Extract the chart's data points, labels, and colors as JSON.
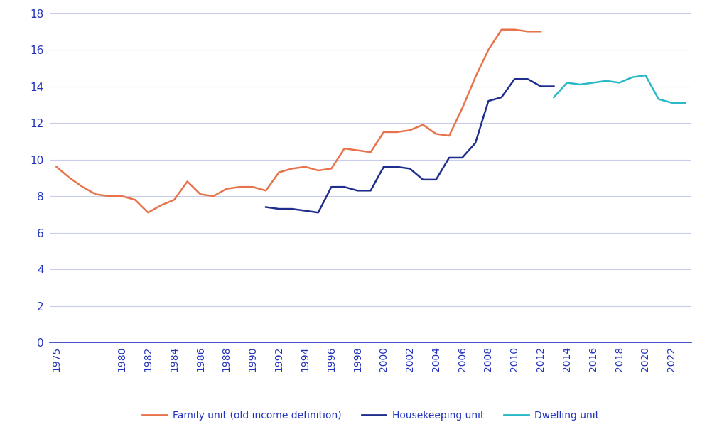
{
  "family_unit": {
    "years": [
      1975,
      1976,
      1977,
      1978,
      1979,
      1980,
      1981,
      1982,
      1983,
      1984,
      1985,
      1986,
      1987,
      1988,
      1989,
      1990,
      1991,
      1992,
      1993,
      1994,
      1995,
      1996,
      1997,
      1998,
      1999,
      2000,
      2001,
      2002,
      2003,
      2004,
      2005,
      2006,
      2007,
      2008,
      2009,
      2010,
      2011,
      2012
    ],
    "values": [
      9.6,
      9.0,
      8.5,
      8.1,
      8.0,
      8.0,
      7.8,
      7.1,
      7.5,
      7.8,
      8.8,
      8.1,
      8.0,
      8.4,
      8.5,
      8.5,
      8.3,
      9.3,
      9.5,
      9.6,
      9.4,
      9.5,
      10.6,
      10.5,
      10.4,
      11.5,
      11.5,
      11.6,
      11.9,
      11.4,
      11.3,
      12.8,
      14.5,
      16.0,
      17.1,
      17.1,
      17.0,
      17.0
    ],
    "color": "#E8734A"
  },
  "housekeeping_unit": {
    "years": [
      1991,
      1992,
      1993,
      1994,
      1995,
      1996,
      1997,
      1998,
      1999,
      2000,
      2001,
      2002,
      2003,
      2004,
      2005,
      2006,
      2007,
      2008,
      2009,
      2010,
      2011,
      2012,
      2013
    ],
    "values": [
      7.4,
      7.3,
      7.3,
      7.2,
      7.1,
      8.5,
      8.5,
      8.3,
      8.3,
      9.6,
      9.6,
      9.5,
      8.9,
      8.9,
      10.1,
      10.1,
      10.9,
      13.2,
      13.4,
      14.4,
      14.4,
      14.0,
      14.0
    ],
    "color": "#1F2E8C"
  },
  "dwelling_unit": {
    "years": [
      2013,
      2014,
      2015,
      2016,
      2017,
      2018,
      2019,
      2020,
      2021,
      2022,
      2023
    ],
    "values": [
      13.4,
      14.2,
      14.1,
      14.2,
      14.3,
      14.2,
      14.5,
      14.6,
      13.3,
      13.1,
      13.1
    ],
    "color": "#29B8C8"
  },
  "ylim": [
    0,
    18
  ],
  "yticks": [
    0,
    2,
    4,
    6,
    8,
    10,
    12,
    14,
    16,
    18
  ],
  "xlim": [
    1974.5,
    2023.5
  ],
  "xticks": [
    1975,
    1980,
    1982,
    1984,
    1986,
    1988,
    1990,
    1992,
    1994,
    1996,
    1998,
    2000,
    2002,
    2004,
    2006,
    2008,
    2010,
    2012,
    2014,
    2016,
    2018,
    2020,
    2022
  ],
  "background_color": "#ffffff",
  "grid_color": "#c8cce8",
  "axis_color": "#2233bb",
  "tick_color": "#2233bb",
  "legend": [
    {
      "label": "Family unit (old income definition)",
      "color": "#E8734A"
    },
    {
      "label": "Housekeeping unit",
      "color": "#1F2E8C"
    },
    {
      "label": "Dwelling unit",
      "color": "#29B8C8"
    }
  ]
}
